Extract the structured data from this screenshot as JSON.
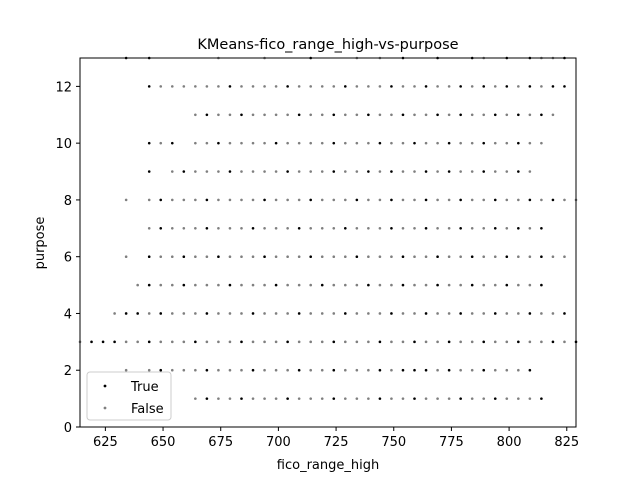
{
  "chart_data": {
    "type": "scatter",
    "title": "KMeans-fico_range_high-vs-purpose",
    "xlabel": "fico_range_high",
    "ylabel": "purpose",
    "xlim": [
      614,
      829
    ],
    "ylim": [
      0,
      13
    ],
    "xticks": [
      625,
      650,
      675,
      700,
      725,
      750,
      775,
      800,
      825
    ],
    "yticks": [
      0,
      2,
      4,
      6,
      8,
      10,
      12
    ],
    "grid": false,
    "legend_position": "lower-left",
    "series": [
      {
        "name": "True",
        "color": "#000000",
        "rows": [
          {
            "y": 13,
            "x": [
              634,
              644,
              714,
              754,
              769,
              784,
              799,
              809,
              824
            ]
          },
          {
            "y": 12,
            "x": [
              644,
              679,
              704,
              729,
              749,
              764,
              779,
              789,
              799,
              809,
              819,
              824
            ]
          },
          {
            "y": 11,
            "x": [
              669,
              684,
              709,
              724,
              739,
              754,
              769,
              779,
              794,
              804,
              814
            ]
          },
          {
            "y": 10,
            "x": [
              644,
              654,
              674,
              699,
              724,
              744,
              759,
              774,
              789,
              804
            ]
          },
          {
            "y": 9,
            "x": [
              644,
              659,
              679,
              704,
              724,
              739,
              749,
              764,
              774,
              789,
              804
            ]
          },
          {
            "y": 8,
            "x": [
              649,
              669,
              694,
              714,
              734,
              749,
              764,
              779,
              794,
              809,
              819
            ]
          },
          {
            "y": 7,
            "x": [
              649,
              669,
              689,
              709,
              729,
              749,
              764,
              779,
              794,
              804,
              814
            ]
          },
          {
            "y": 6,
            "x": [
              644,
              659,
              674,
              694,
              714,
              734,
              754,
              769,
              784,
              799,
              814
            ]
          },
          {
            "y": 5,
            "x": [
              644,
              659,
              679,
              699,
              719,
              739,
              754,
              769,
              784,
              799,
              814
            ]
          },
          {
            "y": 4,
            "x": [
              634,
              639,
              649,
              669,
              689,
              709,
              729,
              749,
              764,
              779,
              794,
              809,
              824
            ]
          },
          {
            "y": 3,
            "x": [
              619,
              624,
              629,
              644,
              664,
              684,
              704,
              724,
              744,
              759,
              774,
              789,
              804,
              819,
              829
            ]
          },
          {
            "y": 2,
            "x": [
              649,
              669,
              689,
              709,
              724,
              744,
              754,
              759,
              764,
              774,
              789,
              809
            ]
          },
          {
            "y": 1,
            "x": [
              669,
              684,
              704,
              724,
              744,
              759,
              779,
              794,
              814
            ]
          }
        ]
      },
      {
        "name": "False",
        "color": "#7f7f7f",
        "rows": [
          {
            "y": 13,
            "x": [
              674,
              694,
              734,
              744,
              789,
              814,
              819
            ]
          },
          {
            "y": 12,
            "x": [
              649,
              654,
              659,
              664,
              669,
              674,
              684,
              689,
              694,
              699,
              709,
              714,
              719,
              724,
              734,
              739,
              744,
              754,
              759,
              769,
              774,
              784,
              794,
              804,
              814
            ]
          },
          {
            "y": 11,
            "x": [
              664,
              674,
              679,
              689,
              694,
              699,
              704,
              714,
              719,
              729,
              734,
              744,
              749,
              759,
              764,
              774,
              784,
              789,
              799,
              809,
              819
            ]
          },
          {
            "y": 10,
            "x": [
              649,
              664,
              669,
              679,
              684,
              689,
              694,
              704,
              709,
              714,
              719,
              729,
              734,
              739,
              749,
              754,
              764,
              769,
              779,
              784,
              794,
              799,
              809,
              814
            ]
          },
          {
            "y": 9,
            "x": [
              654,
              664,
              669,
              674,
              684,
              689,
              694,
              699,
              709,
              714,
              719,
              729,
              734,
              744,
              754,
              759,
              769,
              779,
              784,
              794,
              799,
              809
            ]
          },
          {
            "y": 8,
            "x": [
              634,
              644,
              654,
              659,
              664,
              674,
              679,
              684,
              689,
              699,
              704,
              709,
              719,
              724,
              729,
              739,
              744,
              754,
              759,
              769,
              774,
              784,
              789,
              799,
              804,
              814,
              824,
              829
            ]
          },
          {
            "y": 7,
            "x": [
              644,
              654,
              659,
              664,
              674,
              679,
              684,
              694,
              699,
              704,
              714,
              719,
              724,
              734,
              739,
              744,
              754,
              759,
              769,
              774,
              784,
              789,
              799,
              809
            ]
          },
          {
            "y": 6,
            "x": [
              634,
              649,
              654,
              664,
              669,
              679,
              684,
              689,
              699,
              704,
              709,
              719,
              724,
              729,
              739,
              744,
              749,
              759,
              764,
              774,
              779,
              789,
              794,
              804,
              809,
              819,
              824
            ]
          },
          {
            "y": 5,
            "x": [
              639,
              649,
              654,
              664,
              669,
              674,
              684,
              689,
              694,
              704,
              709,
              714,
              724,
              729,
              734,
              744,
              749,
              759,
              764,
              774,
              779,
              789,
              794,
              804,
              809
            ]
          },
          {
            "y": 4,
            "x": [
              629,
              644,
              654,
              659,
              664,
              674,
              679,
              684,
              694,
              699,
              704,
              714,
              719,
              724,
              734,
              739,
              744,
              754,
              759,
              769,
              774,
              784,
              789,
              799,
              804,
              814,
              819
            ]
          },
          {
            "y": 3,
            "x": [
              614,
              634,
              639,
              649,
              654,
              659,
              669,
              674,
              679,
              689,
              694,
              699,
              709,
              714,
              719,
              729,
              734,
              739,
              749,
              754,
              764,
              769,
              779,
              784,
              794,
              799,
              809,
              814,
              824
            ]
          },
          {
            "y": 2,
            "x": [
              634,
              644,
              654,
              659,
              664,
              674,
              679,
              684,
              694,
              699,
              704,
              714,
              719,
              729,
              734,
              739,
              749,
              769,
              779,
              784,
              794,
              799,
              804
            ]
          },
          {
            "y": 1,
            "x": [
              664,
              674,
              679,
              689,
              694,
              699,
              709,
              714,
              719,
              729,
              734,
              739,
              749,
              754,
              764,
              769,
              774,
              784,
              789,
              799,
              804,
              809
            ]
          }
        ]
      }
    ]
  }
}
